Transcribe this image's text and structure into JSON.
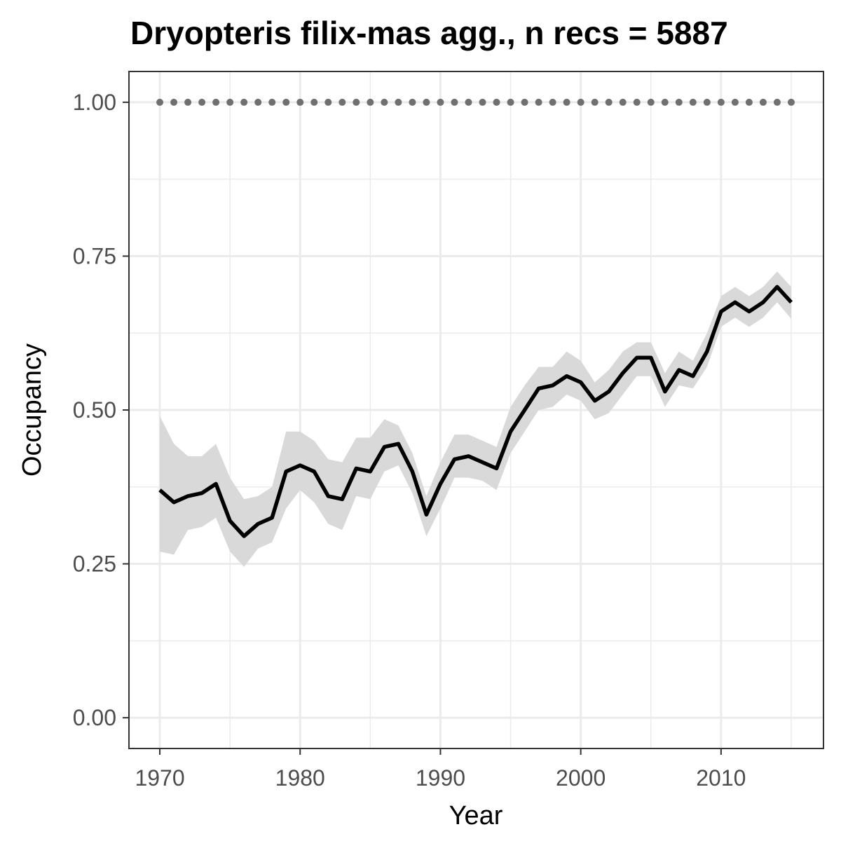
{
  "chart_data": {
    "type": "line",
    "title": "Dryopteris filix-mas agg., n recs = 5887",
    "xlabel": "Year",
    "ylabel": "Occupancy",
    "xlim": [
      1967.8,
      2017.3
    ],
    "ylim": [
      -0.05,
      1.05
    ],
    "x_ticks": [
      1970,
      1980,
      1990,
      2000,
      2010
    ],
    "x_tick_labels": [
      "1970",
      "1980",
      "1990",
      "2000",
      "2010"
    ],
    "x_minor_ticks": [
      1975,
      1985,
      1995,
      2005,
      2015
    ],
    "y_ticks": [
      0,
      0.25,
      0.5,
      0.75,
      1.0
    ],
    "y_tick_labels": [
      "0.00",
      "0.25",
      "0.50",
      "0.75",
      "1.00"
    ],
    "y_minor_ticks": [
      0.125,
      0.375,
      0.625,
      0.875
    ],
    "grid": true,
    "colors": {
      "line": "#000000",
      "ribbon": "#d9d9d9",
      "dots": "#707070",
      "grid": "#ebebeb",
      "panel_border": "#333333"
    },
    "x": [
      1970,
      1971,
      1972,
      1973,
      1974,
      1975,
      1976,
      1977,
      1978,
      1979,
      1980,
      1981,
      1982,
      1983,
      1984,
      1985,
      1986,
      1987,
      1988,
      1989,
      1990,
      1991,
      1992,
      1993,
      1994,
      1995,
      1996,
      1997,
      1998,
      1999,
      2000,
      2001,
      2002,
      2003,
      2004,
      2005,
      2006,
      2007,
      2008,
      2009,
      2010,
      2011,
      2012,
      2013,
      2014,
      2015
    ],
    "series": [
      {
        "values": [
          0.37,
          0.35,
          0.36,
          0.365,
          0.38,
          0.32,
          0.295,
          0.315,
          0.325,
          0.4,
          0.41,
          0.4,
          0.36,
          0.355,
          0.405,
          0.4,
          0.44,
          0.445,
          0.4,
          0.33,
          0.38,
          0.42,
          0.425,
          0.415,
          0.405,
          0.465,
          0.5,
          0.535,
          0.54,
          0.555,
          0.545,
          0.515,
          0.53,
          0.56,
          0.585,
          0.585,
          0.53,
          0.565,
          0.555,
          0.595,
          0.66,
          0.675,
          0.66,
          0.675,
          0.7,
          0.675
        ],
        "lower": [
          0.27,
          0.265,
          0.305,
          0.31,
          0.325,
          0.27,
          0.245,
          0.275,
          0.285,
          0.34,
          0.37,
          0.35,
          0.315,
          0.305,
          0.36,
          0.355,
          0.4,
          0.41,
          0.365,
          0.295,
          0.34,
          0.39,
          0.39,
          0.385,
          0.37,
          0.43,
          0.465,
          0.5,
          0.505,
          0.525,
          0.515,
          0.485,
          0.495,
          0.525,
          0.555,
          0.555,
          0.505,
          0.54,
          0.535,
          0.57,
          0.635,
          0.65,
          0.635,
          0.65,
          0.675,
          0.648
        ],
        "upper": [
          0.49,
          0.445,
          0.425,
          0.425,
          0.445,
          0.39,
          0.355,
          0.36,
          0.375,
          0.465,
          0.465,
          0.45,
          0.42,
          0.415,
          0.455,
          0.455,
          0.485,
          0.475,
          0.43,
          0.36,
          0.415,
          0.46,
          0.46,
          0.45,
          0.44,
          0.505,
          0.54,
          0.57,
          0.57,
          0.595,
          0.58,
          0.545,
          0.565,
          0.595,
          0.61,
          0.61,
          0.56,
          0.595,
          0.58,
          0.625,
          0.685,
          0.7,
          0.685,
          0.7,
          0.725,
          0.7
        ]
      },
      {
        "values": [
          1,
          1,
          1,
          1,
          1,
          1,
          1,
          1,
          1,
          1,
          1,
          1,
          1,
          1,
          1,
          1,
          1,
          1,
          1,
          1,
          1,
          1,
          1,
          1,
          1,
          1,
          1,
          1,
          1,
          1,
          1,
          1,
          1,
          1,
          1,
          1,
          1,
          1,
          1,
          1,
          1,
          1,
          1,
          1,
          1,
          1
        ]
      }
    ]
  }
}
